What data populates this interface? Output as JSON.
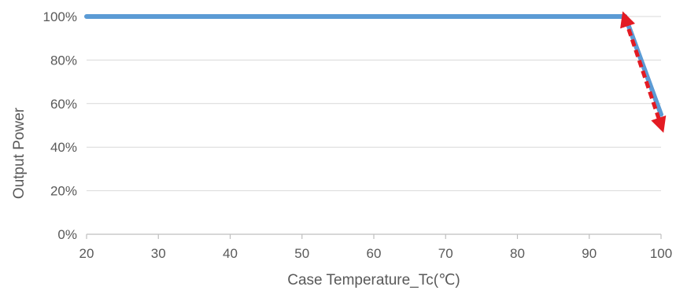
{
  "chart_data": {
    "type": "line",
    "xlabel": "Case Temperature_Tc(℃)",
    "ylabel": "Output Power",
    "xlim": [
      20,
      100
    ],
    "ylim": [
      0,
      100
    ],
    "x_ticks": [
      "20",
      "30",
      "40",
      "50",
      "60",
      "70",
      "80",
      "90",
      "100"
    ],
    "x_tick_values": [
      20,
      30,
      40,
      50,
      60,
      70,
      80,
      90,
      100
    ],
    "y_ticks": [
      "0%",
      "20%",
      "40%",
      "60%",
      "80%",
      "100%"
    ],
    "y_tick_values": [
      0,
      20,
      40,
      60,
      80,
      100
    ],
    "grid": "horizontal",
    "legend": "none",
    "series": [
      {
        "color": "#5B9BD5",
        "style": "solid",
        "points": [
          {
            "x": 20,
            "y": 100
          },
          {
            "x": 95,
            "y": 100
          },
          {
            "x": 100,
            "y": 55
          }
        ]
      }
    ],
    "annotations": [
      {
        "type": "double-arrow",
        "color": "#E31B23",
        "style": "dashed",
        "from": {
          "x": 95,
          "y": 99
        },
        "to": {
          "x": 100,
          "y": 50
        }
      }
    ],
    "colors": {
      "series": "#5B9BD5",
      "annotation": "#E31B23",
      "grid": "#D9D9D9",
      "axis": "#BFBFBF",
      "text": "#595959"
    }
  }
}
